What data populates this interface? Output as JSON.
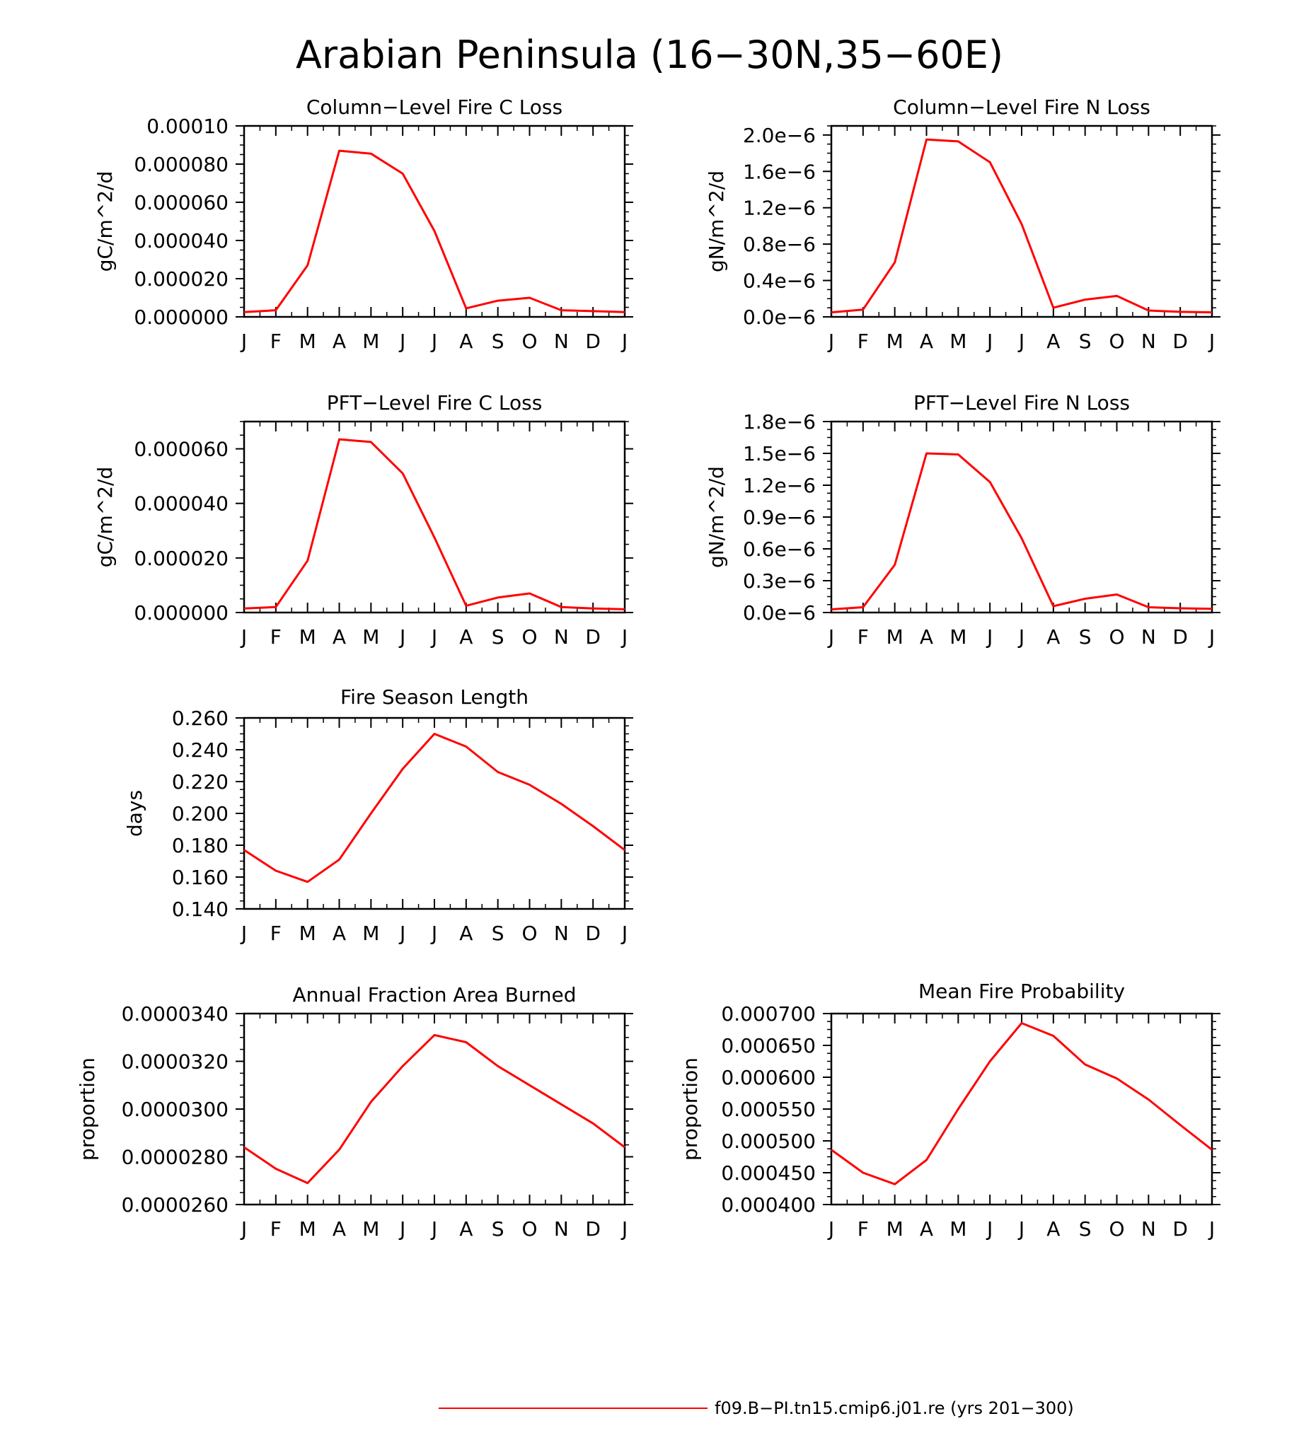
{
  "figure": {
    "title": "Arabian Peninsula (16−30N,35−60E)",
    "legend": {
      "label": "f09.B−PI.tn15.cmip6.j01.re (yrs 201−300)",
      "color": "#ff0000"
    }
  },
  "chart_data": [
    {
      "type": "line",
      "title": "Column−Level Fire C Loss",
      "ylabel": "gC/m^2/d",
      "categories": [
        "J",
        "F",
        "M",
        "A",
        "M",
        "J",
        "J",
        "A",
        "S",
        "O",
        "N",
        "D",
        "J"
      ],
      "ylim": [
        0,
        0.0001
      ],
      "yticks": [
        0,
        2e-05,
        4e-05,
        6e-05,
        8e-05,
        0.0001
      ],
      "ytick_labels": [
        "0.000000",
        "0.000020",
        "0.000040",
        "0.000060",
        "0.000080",
        "0.00010"
      ],
      "series": [
        {
          "values": [
            2.5e-06,
            3.5e-06,
            2.7e-05,
            8.7e-05,
            8.55e-05,
            7.5e-05,
            4.5e-05,
            4.5e-06,
            8.5e-06,
            1e-05,
            3.5e-06,
            3e-06,
            2.5e-06
          ],
          "color": "#ff0000"
        }
      ]
    },
    {
      "type": "line",
      "title": "Column−Level Fire N Loss",
      "ylabel": "gN/m^2/d",
      "categories": [
        "J",
        "F",
        "M",
        "A",
        "M",
        "J",
        "J",
        "A",
        "S",
        "O",
        "N",
        "D",
        "J"
      ],
      "ylim": [
        0,
        2.1e-06
      ],
      "yticks": [
        0,
        4e-07,
        8e-07,
        1.2e-06,
        1.6e-06,
        2e-06
      ],
      "ytick_labels": [
        "0.0e−6",
        "0.4e−6",
        "0.8e−6",
        "1.2e−6",
        "1.6e−6",
        "2.0e−6"
      ],
      "series": [
        {
          "values": [
            5e-08,
            8e-08,
            6e-07,
            1.95e-06,
            1.93e-06,
            1.7e-06,
            1.02e-06,
            1e-07,
            1.9e-07,
            2.3e-07,
            7e-08,
            5.5e-08,
            5e-08
          ],
          "color": "#ff0000"
        }
      ]
    },
    {
      "type": "line",
      "title": "PFT−Level Fire C Loss",
      "ylabel": "gC/m^2/d",
      "categories": [
        "J",
        "F",
        "M",
        "A",
        "M",
        "J",
        "J",
        "A",
        "S",
        "O",
        "N",
        "D",
        "J"
      ],
      "ylim": [
        0,
        7e-05
      ],
      "yticks": [
        0,
        2e-05,
        4e-05,
        6e-05
      ],
      "ytick_labels": [
        "0.000000",
        "0.000020",
        "0.000040",
        "0.000060"
      ],
      "series": [
        {
          "values": [
            1.5e-06,
            2e-06,
            1.9e-05,
            6.35e-05,
            6.25e-05,
            5.1e-05,
            2.75e-05,
            2.5e-06,
            5.5e-06,
            7e-06,
            2e-06,
            1.5e-06,
            1.2e-06
          ],
          "color": "#ff0000"
        }
      ]
    },
    {
      "type": "line",
      "title": "PFT−Level Fire N Loss",
      "ylabel": "gN/m^2/d",
      "categories": [
        "J",
        "F",
        "M",
        "A",
        "M",
        "J",
        "J",
        "A",
        "S",
        "O",
        "N",
        "D",
        "J"
      ],
      "ylim": [
        0,
        1.8e-06
      ],
      "yticks": [
        0,
        3e-07,
        6e-07,
        9e-07,
        1.2e-06,
        1.5e-06,
        1.8e-06
      ],
      "ytick_labels": [
        "0.0e−6",
        "0.3e−6",
        "0.6e−6",
        "0.9e−6",
        "1.2e−6",
        "1.5e−6",
        "1.8e−6"
      ],
      "series": [
        {
          "values": [
            3e-08,
            5e-08,
            4.5e-07,
            1.5e-06,
            1.49e-06,
            1.23e-06,
            7e-07,
            6e-08,
            1.3e-07,
            1.7e-07,
            5e-08,
            4e-08,
            3.5e-08
          ],
          "color": "#ff0000"
        }
      ]
    },
    {
      "type": "line",
      "title": "Fire Season Length",
      "ylabel": "days",
      "categories": [
        "J",
        "F",
        "M",
        "A",
        "M",
        "J",
        "J",
        "A",
        "S",
        "O",
        "N",
        "D",
        "J"
      ],
      "ylim": [
        0.14,
        0.26
      ],
      "yticks": [
        0.14,
        0.16,
        0.18,
        0.2,
        0.22,
        0.24,
        0.26
      ],
      "ytick_labels": [
        "0.140",
        "0.160",
        "0.180",
        "0.200",
        "0.220",
        "0.240",
        "0.260"
      ],
      "series": [
        {
          "values": [
            0.177,
            0.164,
            0.157,
            0.171,
            0.2,
            0.228,
            0.25,
            0.242,
            0.226,
            0.218,
            0.206,
            0.192,
            0.177
          ],
          "color": "#ff0000"
        }
      ]
    },
    {
      "type": "line",
      "title": "Annual Fraction Area Burned",
      "ylabel": "proportion",
      "categories": [
        "J",
        "F",
        "M",
        "A",
        "M",
        "J",
        "J",
        "A",
        "S",
        "O",
        "N",
        "D",
        "J"
      ],
      "ylim": [
        2.6e-05,
        3.4e-05
      ],
      "yticks": [
        2.6e-05,
        2.8e-05,
        3e-05,
        3.2e-05,
        3.4e-05
      ],
      "ytick_labels": [
        "0.0000260",
        "0.0000280",
        "0.0000300",
        "0.0000320",
        "0.0000340"
      ],
      "series": [
        {
          "values": [
            2.84e-05,
            2.75e-05,
            2.69e-05,
            2.83e-05,
            3.03e-05,
            3.18e-05,
            3.31e-05,
            3.28e-05,
            3.18e-05,
            3.1e-05,
            3.02e-05,
            2.94e-05,
            2.84e-05
          ],
          "color": "#ff0000"
        }
      ]
    },
    {
      "type": "line",
      "title": "Mean Fire Probability",
      "ylabel": "proportion",
      "categories": [
        "J",
        "F",
        "M",
        "A",
        "M",
        "J",
        "J",
        "A",
        "S",
        "O",
        "N",
        "D",
        "J"
      ],
      "ylim": [
        0.0004,
        0.0007
      ],
      "yticks": [
        0.0004,
        0.00045,
        0.0005,
        0.00055,
        0.0006,
        0.00065,
        0.0007
      ],
      "ytick_labels": [
        "0.000400",
        "0.000450",
        "0.000500",
        "0.000550",
        "0.000600",
        "0.000650",
        "0.000700"
      ],
      "series": [
        {
          "values": [
            0.000486,
            0.00045,
            0.000432,
            0.00047,
            0.00055,
            0.000625,
            0.000685,
            0.000665,
            0.00062,
            0.000598,
            0.000565,
            0.000525,
            0.000486
          ],
          "color": "#ff0000"
        }
      ]
    }
  ]
}
